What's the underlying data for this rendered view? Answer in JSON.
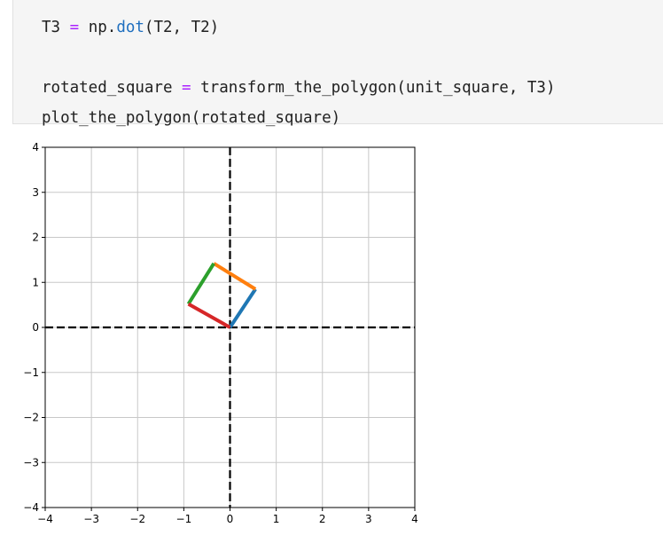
{
  "cell": {
    "code_lines": [
      {
        "parts": [
          {
            "text": "T3 ",
            "cls": "plain"
          },
          {
            "text": "=",
            "cls": "op"
          },
          {
            "text": " np.",
            "cls": "plain"
          },
          {
            "text": "dot",
            "cls": "fn"
          },
          {
            "text": "(T2, T2)",
            "cls": "plain"
          }
        ]
      },
      {
        "parts": []
      },
      {
        "parts": [
          {
            "text": "rotated_square ",
            "cls": "plain"
          },
          {
            "text": "=",
            "cls": "op"
          },
          {
            "text": " transform_the_polygon(unit_square, T3)",
            "cls": "plain"
          }
        ]
      },
      {
        "parts": [
          {
            "text": "plot_the_polygon(rotated_square)",
            "cls": "plain"
          }
        ]
      }
    ]
  },
  "chart_data": {
    "type": "line",
    "xlim": [
      -4,
      4
    ],
    "ylim": [
      -4,
      4
    ],
    "grid": true,
    "xticks": [
      "−4",
      "−3",
      "−2",
      "−1",
      "0",
      "1",
      "2",
      "3",
      "4"
    ],
    "yticks": [
      "4",
      "3",
      "2",
      "1",
      "0",
      "−1",
      "−2",
      "−3",
      "−4"
    ],
    "axis_lines": {
      "style": "dashed",
      "color": "#000000"
    },
    "series": [
      {
        "color": "#1f77b4",
        "x": [
          0,
          0.55
        ],
        "y": [
          0,
          0.85
        ]
      },
      {
        "color": "#ff7f0e",
        "x": [
          0.55,
          -0.35
        ],
        "y": [
          0.85,
          1.42
        ]
      },
      {
        "color": "#2ca02c",
        "x": [
          -0.35,
          -0.9
        ],
        "y": [
          1.42,
          0.52
        ]
      },
      {
        "color": "#d62728",
        "x": [
          -0.9,
          0
        ],
        "y": [
          0.52,
          0
        ]
      }
    ]
  }
}
